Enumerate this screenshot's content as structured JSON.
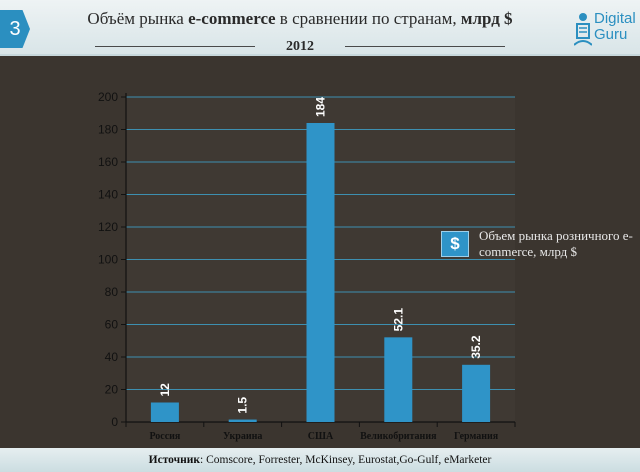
{
  "header": {
    "slide_number": "3",
    "title_part1": "Объём рынка ",
    "title_bold1": "e-commerce",
    "title_part2": " в сравнении по странам, ",
    "title_bold2": "млрд $",
    "year": "2012",
    "logo_line1": "Digital",
    "logo_line2": "Guru"
  },
  "legend": {
    "symbol": "$",
    "label": "Объем рынка розничного e-commerce, млрд $"
  },
  "footer": {
    "source_label": "Источник",
    "source_text": ": Comscore, Forrester, McKinsey, Eurostat,Go-Gulf, eMarketer"
  },
  "colors": {
    "background": "#3b352f",
    "bar": "#2f94c8",
    "grid": "#3d8fb0",
    "plot_area": "#3f3933"
  },
  "chart_data": {
    "type": "bar",
    "title": "Объём рынка e-commerce в сравнении по странам, млрд $",
    "subtitle": "2012",
    "categories": [
      "Россия",
      "Украина",
      "США",
      "Великобритания",
      "Германия"
    ],
    "values": [
      12,
      1.5,
      184,
      52.1,
      35.2
    ],
    "value_labels": [
      "12",
      "1.5",
      "184",
      "52.1",
      "35.2"
    ],
    "yticks": [
      "0",
      "20",
      "40",
      "60",
      "80",
      "100",
      "120",
      "140",
      "160",
      "180",
      "200"
    ],
    "ylim": [
      0,
      200
    ],
    "xlabel": "",
    "ylabel": "",
    "grid": true,
    "legend_position": "right",
    "series": [
      {
        "name": "Объем рынка розничного e-commerce, млрд $",
        "values": [
          12,
          1.5,
          184,
          52.1,
          35.2
        ]
      }
    ]
  }
}
